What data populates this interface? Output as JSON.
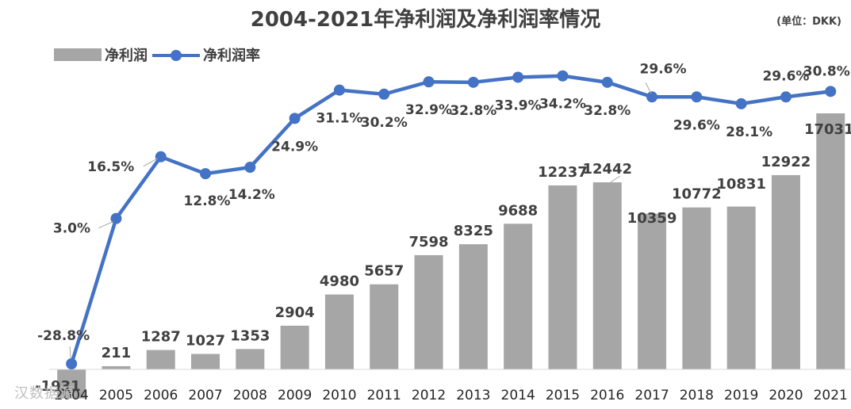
{
  "chart_data": {
    "type": "bar+line",
    "title": "2004-2021年净利润及净利润率情况",
    "unit_note": "(单位：DKK)",
    "categories": [
      "2004",
      "2005",
      "2006",
      "2007",
      "2008",
      "2009",
      "2010",
      "2011",
      "2012",
      "2013",
      "2014",
      "2015",
      "2016",
      "2017",
      "2018",
      "2019",
      "2020",
      "2021"
    ],
    "series": [
      {
        "name": "净利润",
        "type": "bar",
        "color": "#a6a6a6",
        "values": [
          -1931,
          211,
          1287,
          1027,
          1353,
          2904,
          4980,
          5657,
          7598,
          8325,
          9688,
          12237,
          12442,
          10359,
          10772,
          10831,
          12922,
          17031
        ],
        "labels": [
          "-1931",
          "211",
          "1287",
          "1027",
          "1353",
          "2904",
          "4980",
          "5657",
          "7598",
          "8325",
          "9688",
          "12237",
          "12442",
          "10359",
          "10772",
          "10831",
          "12922",
          "17031"
        ]
      },
      {
        "name": "净利润率",
        "type": "line",
        "color": "#4472c4",
        "values": [
          -28.8,
          3.0,
          16.5,
          12.8,
          14.2,
          24.9,
          31.1,
          30.2,
          32.9,
          32.8,
          33.9,
          34.2,
          32.8,
          29.6,
          29.6,
          28.1,
          29.6,
          30.8
        ],
        "labels": [
          "-28.8%",
          "3.0%",
          "16.5%",
          "12.8%",
          "14.2%",
          "24.9%",
          "31.1%",
          "30.2%",
          "32.9%",
          "32.8%",
          "33.9%",
          "34.2%",
          "32.8%",
          "29.6%",
          "29.6%",
          "28.1%",
          "29.6%",
          "30.8%"
        ]
      }
    ],
    "bar_axis_range": [
      -2000,
      18000
    ],
    "line_axis_range": [
      -30,
      40
    ],
    "legend_position": "top-left",
    "grid": false
  },
  "watermark": "汉数据源"
}
